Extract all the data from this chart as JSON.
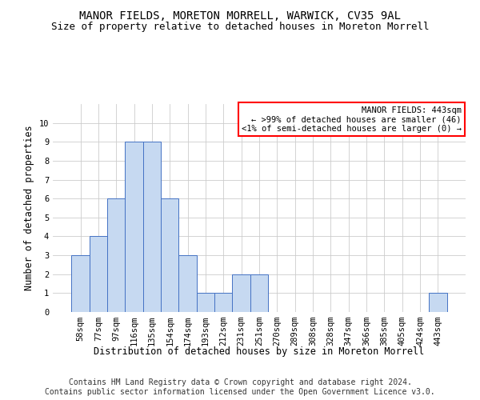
{
  "title": "MANOR FIELDS, MORETON MORRELL, WARWICK, CV35 9AL",
  "subtitle": "Size of property relative to detached houses in Moreton Morrell",
  "xlabel": "Distribution of detached houses by size in Moreton Morrell",
  "ylabel": "Number of detached properties",
  "bar_labels": [
    "58sqm",
    "77sqm",
    "97sqm",
    "116sqm",
    "135sqm",
    "154sqm",
    "174sqm",
    "193sqm",
    "212sqm",
    "231sqm",
    "251sqm",
    "270sqm",
    "289sqm",
    "308sqm",
    "328sqm",
    "347sqm",
    "366sqm",
    "385sqm",
    "405sqm",
    "424sqm",
    "443sqm"
  ],
  "bar_values": [
    3,
    4,
    6,
    9,
    9,
    6,
    3,
    1,
    1,
    2,
    2,
    0,
    0,
    0,
    0,
    0,
    0,
    0,
    0,
    0,
    1
  ],
  "bar_color": "#c6d9f1",
  "bar_edge_color": "#4472c4",
  "legend_title": "MANOR FIELDS: 443sqm",
  "legend_line1": "← >99% of detached houses are smaller (46)",
  "legend_line2": "<1% of semi-detached houses are larger (0) →",
  "ylim": [
    0,
    11
  ],
  "yticks": [
    0,
    1,
    2,
    3,
    4,
    5,
    6,
    7,
    8,
    9,
    10
  ],
  "footer_line1": "Contains HM Land Registry data © Crown copyright and database right 2024.",
  "footer_line2": "Contains public sector information licensed under the Open Government Licence v3.0.",
  "bg_color": "#ffffff",
  "grid_color": "#cccccc",
  "title_fontsize": 10,
  "subtitle_fontsize": 9,
  "axis_label_fontsize": 8.5,
  "tick_fontsize": 7.5,
  "footer_fontsize": 7
}
